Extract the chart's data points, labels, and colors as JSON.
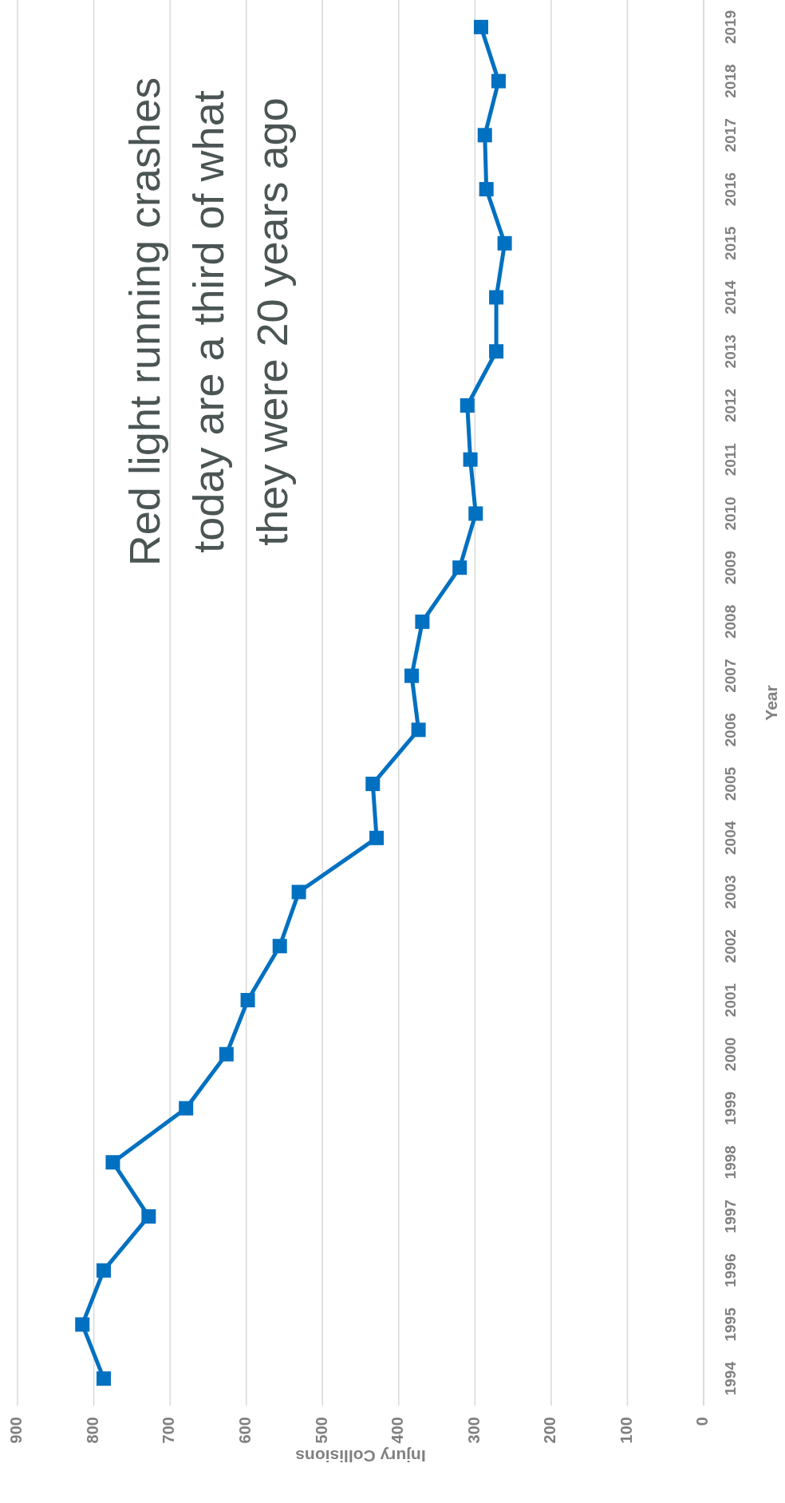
{
  "chart_data": {
    "type": "line",
    "xlabel": "Injury Collisions",
    "ylabel": "Year",
    "annotations": [
      "Red light running crashes today are a third of what they were 20 years ago"
    ],
    "series": [
      {
        "color": "#0070c0",
        "x": [
          787,
          815,
          787,
          728,
          775,
          679,
          626,
          598,
          556,
          531,
          429,
          434,
          374,
          383,
          369,
          320,
          299,
          306,
          310,
          272,
          272,
          261,
          285,
          287,
          269,
          292
        ],
        "values": [
          1994,
          1995,
          1996,
          1997,
          1998,
          1999,
          2000,
          2001,
          2002,
          2003,
          2004,
          2005,
          2006,
          2007,
          2008,
          2009,
          2010,
          2011,
          2012,
          2013,
          2014,
          2015,
          2016,
          2017,
          2018,
          2019
        ]
      }
    ],
    "xlim": [
      900,
      0
    ],
    "xticks": [
      900,
      800,
      700,
      600,
      500,
      400,
      300,
      200,
      100,
      0
    ],
    "ylim": [
      1993.5,
      2019.5
    ],
    "yticks": [
      1994,
      1995,
      1996,
      1997,
      1998,
      1999,
      2000,
      2001,
      2002,
      2003,
      2004,
      2005,
      2006,
      2007,
      2008,
      2009,
      2010,
      2011,
      2012,
      2013,
      2014,
      2015,
      2016,
      2017,
      2018,
      2019
    ],
    "grid": "x",
    "marker": "square",
    "line_style": "solid"
  }
}
